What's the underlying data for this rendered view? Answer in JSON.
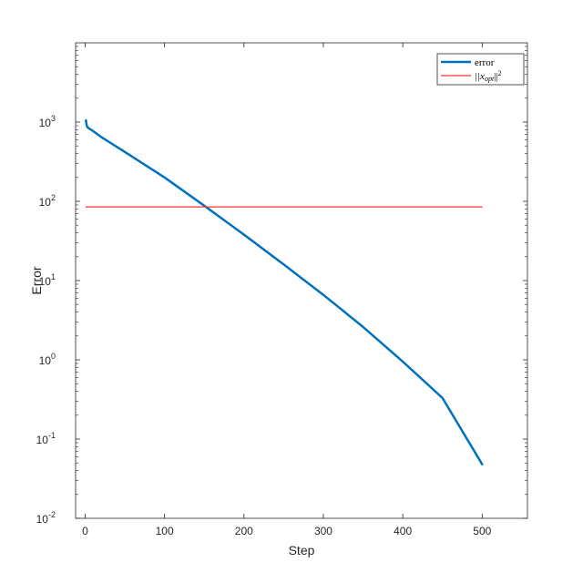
{
  "chart_data": {
    "type": "line",
    "xlabel": "Step",
    "ylabel": "Error",
    "xlim": [
      -12,
      557
    ],
    "ylim": [
      0.01,
      10000
    ],
    "yscale": "log",
    "grid": false,
    "legend_position": "top-right",
    "x_ticks": [
      0,
      100,
      200,
      300,
      400,
      500
    ],
    "x_tick_labels": [
      "0",
      "100",
      "200",
      "300",
      "400",
      "500"
    ],
    "y_ticks": [
      {
        "value": 0.01,
        "base": "10",
        "exp": "-2"
      },
      {
        "value": 0.1,
        "base": "10",
        "exp": "-1"
      },
      {
        "value": 1,
        "base": "10",
        "exp": "0"
      },
      {
        "value": 10,
        "base": "10",
        "exp": "1"
      },
      {
        "value": 100,
        "base": "10",
        "exp": "2"
      },
      {
        "value": 1000,
        "base": "10",
        "exp": "3"
      }
    ],
    "series": [
      {
        "name": "error",
        "color": "#0072bd",
        "x": [
          1,
          2,
          3,
          5,
          10,
          20,
          50,
          100,
          150,
          200,
          250,
          300,
          350,
          400,
          450,
          500
        ],
        "y": [
          1050,
          900,
          860,
          830,
          770,
          650,
          420,
          200,
          88,
          38,
          16,
          6.6,
          2.6,
          0.95,
          0.33,
          0.048
        ]
      },
      {
        "name": "||x_opt||^2",
        "color": "#ff3333",
        "x": [
          1,
          500
        ],
        "y": [
          85,
          85
        ]
      }
    ],
    "legend": [
      {
        "label": "error",
        "color": "#0072bd"
      },
      {
        "label_main": "||x",
        "label_sub": "opt",
        "label_tail": "||",
        "label_sup": "2",
        "color": "#ff3333"
      }
    ]
  }
}
